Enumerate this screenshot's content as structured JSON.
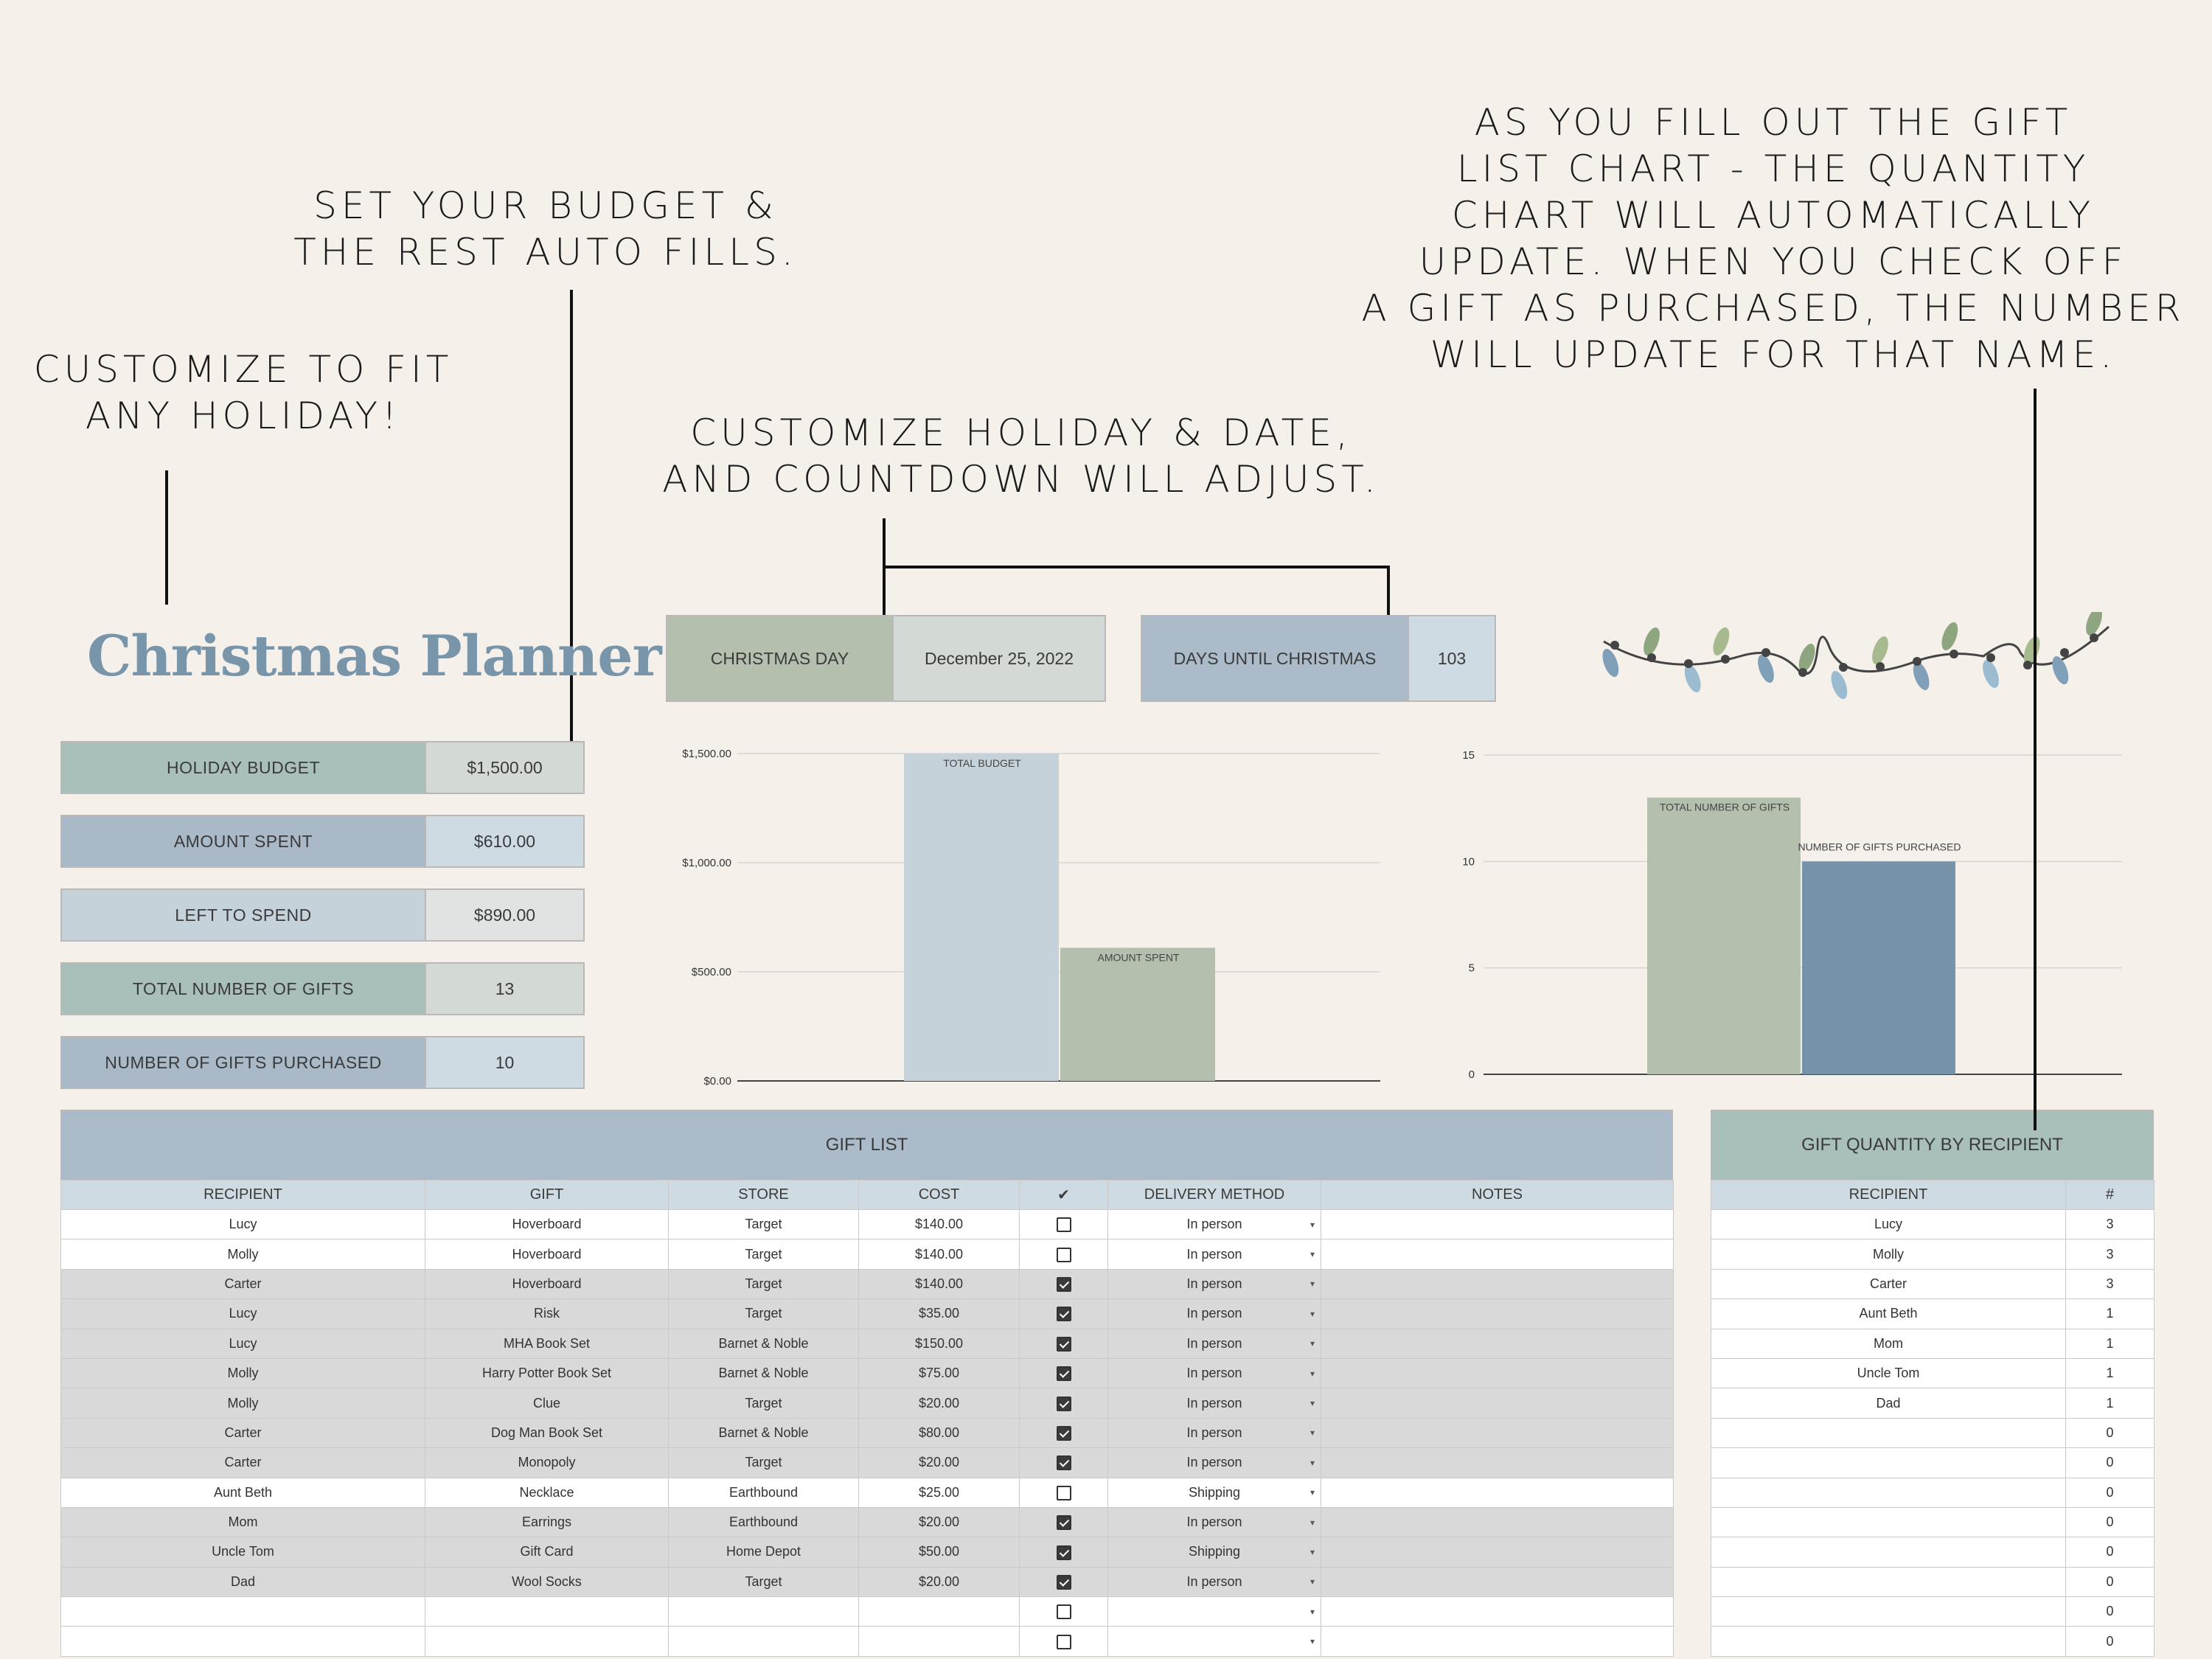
{
  "annotations": {
    "holiday": [
      "CUSTOMIZE TO FIT",
      "ANY HOLIDAY!"
    ],
    "budget": [
      "SET YOUR BUDGET &",
      "THE REST AUTO FILLS."
    ],
    "date": [
      "CUSTOMIZE HOLIDAY & DATE,",
      "AND COUNTDOWN WILL ADJUST."
    ],
    "gifts": [
      "AS YOU FILL OUT THE GIFT",
      "LIST CHART - THE QUANTITY",
      "CHART WILL AUTOMATICALLY",
      "UPDATE. WHEN YOU CHECK OFF",
      "A GIFT AS PURCHASED, THE NUMBER",
      "WILL UPDATE FOR THAT NAME."
    ]
  },
  "title": "Christmas Planner",
  "stats": [
    {
      "label": "HOLIDAY BUDGET",
      "value": "$1,500.00",
      "lc": "#a9bfba",
      "vc": "#d3dad6"
    },
    {
      "label": "AMOUNT SPENT",
      "value": "$610.00",
      "lc": "#a9b9c8",
      "vc": "#cfdbe3"
    },
    {
      "label": "LEFT TO SPEND",
      "value": "$890.00",
      "lc": "#c5d2da",
      "vc": "#e1e3e3"
    },
    {
      "label": "TOTAL NUMBER OF GIFTS",
      "value": "13",
      "lc": "#a9bfba",
      "vc": "#d3dad6"
    },
    {
      "label": "NUMBER OF GIFTS PURCHASED",
      "value": "10",
      "lc": "#a9b9c8",
      "vc": "#cfdbe3"
    }
  ],
  "holiday_box": {
    "label": "CHRISTMAS DAY",
    "value": "December 25, 2022"
  },
  "countdown_box": {
    "label": "DAYS UNTIL CHRISTMAS",
    "value": "103"
  },
  "colors": {
    "sage": "#b5bfae",
    "lightblue": "#c6d2da",
    "steel": "#7594aa",
    "header_blue": "#abbbca",
    "header_green": "#a9bfba"
  },
  "chart_data": [
    {
      "type": "bar",
      "categories": [
        "TOTAL BUDGET",
        "AMOUNT SPENT"
      ],
      "values": [
        1500,
        610
      ],
      "yticks": [
        "$0.00",
        "$500.00",
        "$1,000.00",
        "$1,500.00"
      ],
      "ylim": [
        0,
        1500
      ],
      "grid": true
    },
    {
      "type": "bar",
      "categories": [
        "TOTAL NUMBER OF GIFTS",
        "NUMBER OF GIFTS PURCHASED"
      ],
      "values": [
        13,
        10
      ],
      "yticks": [
        "0",
        "5",
        "10",
        "15"
      ],
      "ylim": [
        0,
        15
      ],
      "grid": true
    }
  ],
  "gift_list": {
    "title": "GIFT LIST",
    "headers": [
      "RECIPIENT",
      "GIFT",
      "STORE",
      "COST",
      "✔",
      "DELIVERY METHOD",
      "NOTES"
    ],
    "rows": [
      {
        "recipient": "Lucy",
        "gift": "Hoverboard",
        "store": "Target",
        "cost": "$140.00",
        "checked": false,
        "delivery": "In person",
        "notes": ""
      },
      {
        "recipient": "Molly",
        "gift": "Hoverboard",
        "store": "Target",
        "cost": "$140.00",
        "checked": false,
        "delivery": "In person",
        "notes": ""
      },
      {
        "recipient": "Carter",
        "gift": "Hoverboard",
        "store": "Target",
        "cost": "$140.00",
        "checked": true,
        "delivery": "In person",
        "notes": ""
      },
      {
        "recipient": "Lucy",
        "gift": "Risk",
        "store": "Target",
        "cost": "$35.00",
        "checked": true,
        "delivery": "In person",
        "notes": ""
      },
      {
        "recipient": "Lucy",
        "gift": "MHA Book Set",
        "store": "Barnet & Noble",
        "cost": "$150.00",
        "checked": true,
        "delivery": "In person",
        "notes": ""
      },
      {
        "recipient": "Molly",
        "gift": "Harry Potter Book Set",
        "store": "Barnet & Noble",
        "cost": "$75.00",
        "checked": true,
        "delivery": "In person",
        "notes": ""
      },
      {
        "recipient": "Molly",
        "gift": "Clue",
        "store": "Target",
        "cost": "$20.00",
        "checked": true,
        "delivery": "In person",
        "notes": ""
      },
      {
        "recipient": "Carter",
        "gift": "Dog Man Book Set",
        "store": "Barnet & Noble",
        "cost": "$80.00",
        "checked": true,
        "delivery": "In person",
        "notes": ""
      },
      {
        "recipient": "Carter",
        "gift": "Monopoly",
        "store": "Target",
        "cost": "$20.00",
        "checked": true,
        "delivery": "In person",
        "notes": ""
      },
      {
        "recipient": "Aunt Beth",
        "gift": "Necklace",
        "store": "Earthbound",
        "cost": "$25.00",
        "checked": false,
        "delivery": "Shipping",
        "notes": ""
      },
      {
        "recipient": "Mom",
        "gift": "Earrings",
        "store": "Earthbound",
        "cost": "$20.00",
        "checked": true,
        "delivery": "In person",
        "notes": ""
      },
      {
        "recipient": "Uncle Tom",
        "gift": "Gift Card",
        "store": "Home Depot",
        "cost": "$50.00",
        "checked": true,
        "delivery": "Shipping",
        "notes": ""
      },
      {
        "recipient": "Dad",
        "gift": "Wool Socks",
        "store": "Target",
        "cost": "$20.00",
        "checked": true,
        "delivery": "In person",
        "notes": ""
      },
      {
        "recipient": "",
        "gift": "",
        "store": "",
        "cost": "",
        "checked": false,
        "delivery": "",
        "notes": ""
      },
      {
        "recipient": "",
        "gift": "",
        "store": "",
        "cost": "",
        "checked": false,
        "delivery": "",
        "notes": ""
      }
    ]
  },
  "quantity": {
    "title": "GIFT QUANTITY BY RECIPIENT",
    "headers": [
      "RECIPIENT",
      "#"
    ],
    "rows": [
      {
        "recipient": "Lucy",
        "count": "3"
      },
      {
        "recipient": "Molly",
        "count": "3"
      },
      {
        "recipient": "Carter",
        "count": "3"
      },
      {
        "recipient": "Aunt Beth",
        "count": "1"
      },
      {
        "recipient": "Mom",
        "count": "1"
      },
      {
        "recipient": "Uncle Tom",
        "count": "1"
      },
      {
        "recipient": "Dad",
        "count": "1"
      },
      {
        "recipient": "",
        "count": "0"
      },
      {
        "recipient": "",
        "count": "0"
      },
      {
        "recipient": "",
        "count": "0"
      },
      {
        "recipient": "",
        "count": "0"
      },
      {
        "recipient": "",
        "count": "0"
      },
      {
        "recipient": "",
        "count": "0"
      },
      {
        "recipient": "",
        "count": "0"
      },
      {
        "recipient": "",
        "count": "0"
      }
    ]
  },
  "icons": {
    "lights": "string-lights-icon",
    "dropdown": "chevron-down-icon",
    "checkbox": "checkbox-icon"
  }
}
